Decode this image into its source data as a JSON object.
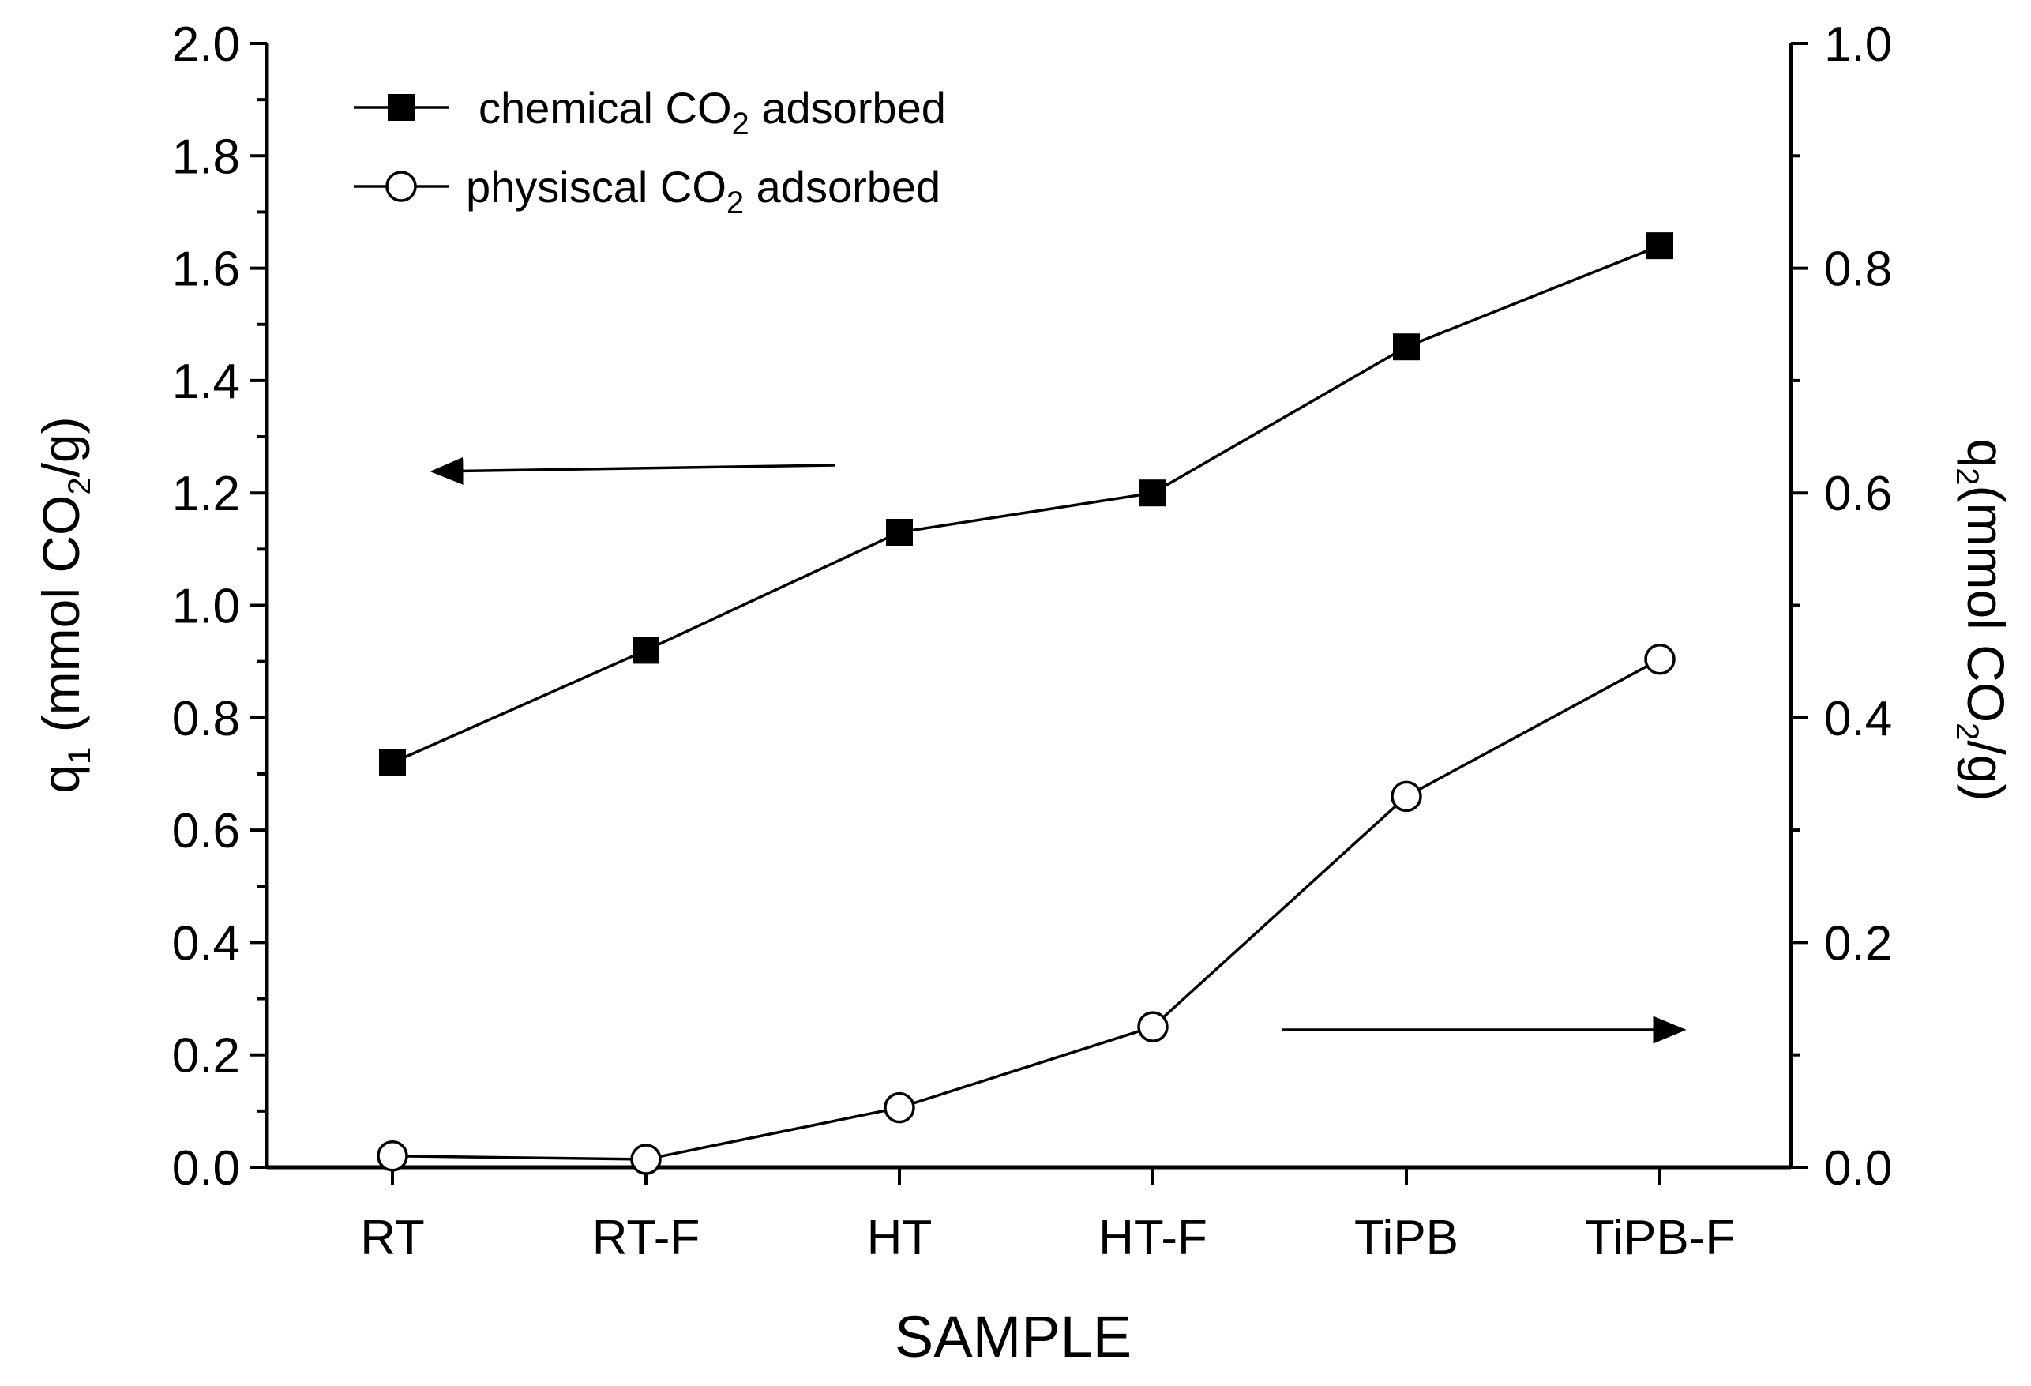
{
  "chart_data": {
    "type": "line",
    "categories": [
      "RT",
      "RT-F",
      "HT",
      "HT-F",
      "TiPB",
      "TiPB-F"
    ],
    "xlabel": "SAMPLE",
    "y_left": {
      "label_parts": [
        "q",
        "1",
        " (mmol CO",
        "2",
        "/g)"
      ],
      "lim": [
        0,
        2.0
      ],
      "ticks": [
        "0.0",
        "0.2",
        "0.4",
        "0.6",
        "0.8",
        "1.0",
        "1.2",
        "1.4",
        "1.6",
        "1.8",
        "2.0"
      ]
    },
    "y_right": {
      "label_parts": [
        "q",
        "2",
        "(mmol CO",
        "2",
        "/g)"
      ],
      "lim": [
        0,
        1.0
      ],
      "ticks": [
        "0.0",
        "0.2",
        "0.4",
        "0.6",
        "0.8",
        "1.0"
      ]
    },
    "series": [
      {
        "name": "chemical CO2 adsorbed",
        "legend_parts": [
          "chemical CO",
          "2",
          " adsorbed"
        ],
        "axis": "left",
        "marker": "filled-square",
        "values": [
          0.72,
          0.92,
          1.13,
          1.2,
          1.46,
          1.64
        ]
      },
      {
        "name": "physiscal CO2 adsorbed",
        "legend_parts": [
          "physiscal CO",
          "2",
          " adsorbed"
        ],
        "axis": "right",
        "marker": "open-circle",
        "values": [
          0.01,
          0.007,
          0.053,
          0.125,
          0.33,
          0.452
        ]
      }
    ],
    "annotations": [
      {
        "type": "arrow",
        "points_to": "left-axis",
        "series": "chemical CO2 adsorbed"
      },
      {
        "type": "arrow",
        "points_to": "right-axis",
        "series": "physiscal CO2 adsorbed"
      }
    ],
    "legend_position": "top-left",
    "grid": false
  }
}
